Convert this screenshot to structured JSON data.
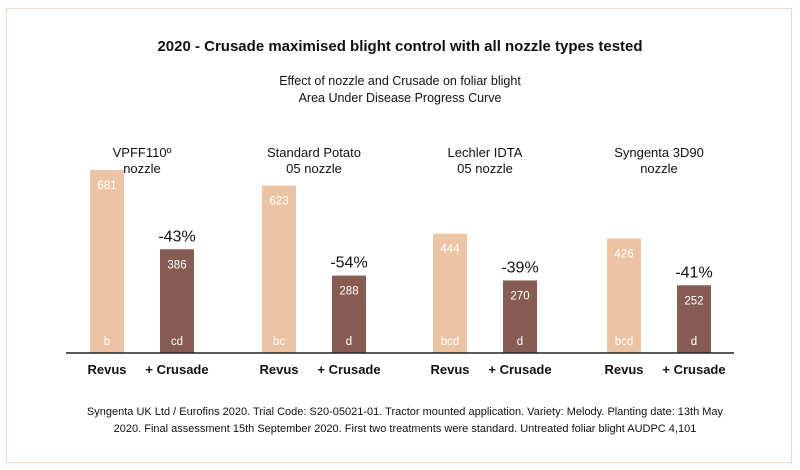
{
  "title": "2020 - Crusade maximised blight control with all nozzle types tested",
  "subtitle_line1": "Effect of nozzle and Crusade on foliar blight",
  "subtitle_line2": "Area Under Disease Progress Curve",
  "footnote_line1": "Syngenta UK Ltd / Eurofins 2020. Trial Code: S20-05021-01. Tractor mounted application. Variety: Melody. Planting date: 13th May",
  "footnote_line2": "2020. Final assessment 15th September 2020. First two treatments were standard. Untreated foliar blight AUDPC 4,101",
  "colors": {
    "revus": "#ecc4a4",
    "crusade": "#875c53",
    "axis": "#222222",
    "frame": "#f2d6c6"
  },
  "chart_data": {
    "type": "bar",
    "ylim": [
      0,
      800
    ],
    "groups": [
      {
        "label_lines": [
          "VPFF110º",
          "nozzle"
        ],
        "bars": [
          {
            "category": "Revus",
            "value": 681,
            "letter": "b"
          },
          {
            "category": "+ Crusade",
            "value": 386,
            "letter": "cd",
            "change": "-43%"
          }
        ]
      },
      {
        "label_lines": [
          "Standard Potato",
          "05 nozzle"
        ],
        "bars": [
          {
            "category": "Revus",
            "value": 623,
            "letter": "bc"
          },
          {
            "category": "+ Crusade",
            "value": 288,
            "letter": "d",
            "change": "-54%"
          }
        ]
      },
      {
        "label_lines": [
          "Lechler IDTA",
          "05 nozzle"
        ],
        "bars": [
          {
            "category": "Revus",
            "value": 444,
            "letter": "bcd"
          },
          {
            "category": "+ Crusade",
            "value": 270,
            "letter": "d",
            "change": "-39%"
          }
        ]
      },
      {
        "label_lines": [
          "Syngenta 3D90",
          "nozzle"
        ],
        "bars": [
          {
            "category": "Revus",
            "value": 426,
            "letter": "bcd"
          },
          {
            "category": "+ Crusade",
            "value": 252,
            "letter": "d",
            "change": "-41%"
          }
        ]
      }
    ]
  }
}
